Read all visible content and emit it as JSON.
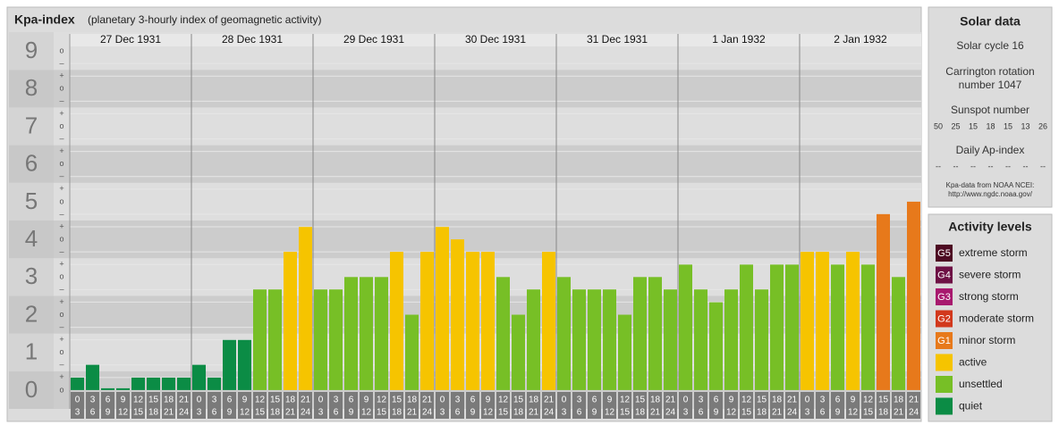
{
  "chart_data": {
    "type": "bar",
    "title": "Kpa-index",
    "subtitle": "(planetary 3-hourly index of geomagnetic activity)",
    "days": [
      "27 Dec 1931",
      "28 Dec 1931",
      "29 Dec 1931",
      "30 Dec 1931",
      "31 Dec 1931",
      "1 Jan 1932",
      "2 Jan 1932"
    ],
    "hour_ranges": [
      [
        "0",
        "3"
      ],
      [
        "3",
        "6"
      ],
      [
        "6",
        "9"
      ],
      [
        "9",
        "12"
      ],
      [
        "12",
        "15"
      ],
      [
        "15",
        "18"
      ],
      [
        "18",
        "21"
      ],
      [
        "21",
        "24"
      ]
    ],
    "values": [
      0.33,
      0.67,
      0,
      0,
      0.33,
      0.33,
      0.33,
      0.33,
      0.67,
      0.33,
      1.33,
      1.33,
      2.67,
      2.67,
      3.67,
      4.33,
      2.67,
      2.67,
      3,
      3,
      3,
      3.67,
      2,
      3.67,
      4.33,
      4,
      3.67,
      3.67,
      3,
      2,
      2.67,
      3.67,
      3,
      2.67,
      2.67,
      2.67,
      2,
      3,
      3,
      2.67,
      3.33,
      2.67,
      2.33,
      2.67,
      3.33,
      2.67,
      3.33,
      3.33,
      3.67,
      3.67,
      3.33,
      3.67,
      3.33,
      4.67,
      3,
      5
    ],
    "colors": [
      "#0b8c45",
      "#0b8c45",
      "#0b8c45",
      "#0b8c45",
      "#0b8c45",
      "#0b8c45",
      "#0b8c45",
      "#0b8c45",
      "#0b8c45",
      "#0b8c45",
      "#0b8c45",
      "#0b8c45",
      "#77bf26",
      "#77bf26",
      "#f6c400",
      "#f6c400",
      "#77bf26",
      "#77bf26",
      "#77bf26",
      "#77bf26",
      "#77bf26",
      "#f6c400",
      "#77bf26",
      "#f6c400",
      "#f6c400",
      "#f6c400",
      "#f6c400",
      "#f6c400",
      "#77bf26",
      "#77bf26",
      "#77bf26",
      "#f6c400",
      "#77bf26",
      "#77bf26",
      "#77bf26",
      "#77bf26",
      "#77bf26",
      "#77bf26",
      "#77bf26",
      "#77bf26",
      "#77bf26",
      "#77bf26",
      "#77bf26",
      "#77bf26",
      "#77bf26",
      "#77bf26",
      "#77bf26",
      "#77bf26",
      "#f6c400",
      "#f6c400",
      "#77bf26",
      "#f6c400",
      "#77bf26",
      "#e7791b",
      "#77bf26",
      "#e7791b"
    ],
    "ylim": [
      -0.5,
      9.5
    ],
    "yticks": [
      0,
      1,
      2,
      3,
      4,
      5,
      6,
      7,
      8,
      9
    ],
    "subdivision_labels": [
      "–",
      "o",
      "+"
    ]
  },
  "solar_data": {
    "title": "Solar data",
    "cycle": "Solar cycle 16",
    "rotation": [
      "Carrington rotation",
      "number 1047"
    ],
    "sunspot_title": "Sunspot number",
    "sunspot_values": [
      50,
      25,
      15,
      18,
      15,
      13,
      26
    ],
    "ap_title": "Daily Ap-index",
    "ap_values": [
      "--",
      "--",
      "--",
      "--",
      "--",
      "--",
      "--"
    ],
    "source": [
      "Kpa-data from NOAA NCEI:",
      "http://www.ngdc.noaa.gov/"
    ]
  },
  "activity_levels": {
    "title": "Activity levels",
    "items": [
      {
        "badge": "G5",
        "label": "extreme storm",
        "color": "#4d0a22"
      },
      {
        "badge": "G4",
        "label": "severe storm",
        "color": "#6e1145"
      },
      {
        "badge": "G3",
        "label": "strong storm",
        "color": "#a8196e"
      },
      {
        "badge": "G2",
        "label": "moderate storm",
        "color": "#d2381c"
      },
      {
        "badge": "G1",
        "label": "minor storm",
        "color": "#e7791b"
      },
      {
        "badge": "",
        "label": "active",
        "color": "#f6c400"
      },
      {
        "badge": "",
        "label": "unsettled",
        "color": "#77bf26"
      },
      {
        "badge": "",
        "label": "quiet",
        "color": "#0b8c45"
      }
    ]
  }
}
